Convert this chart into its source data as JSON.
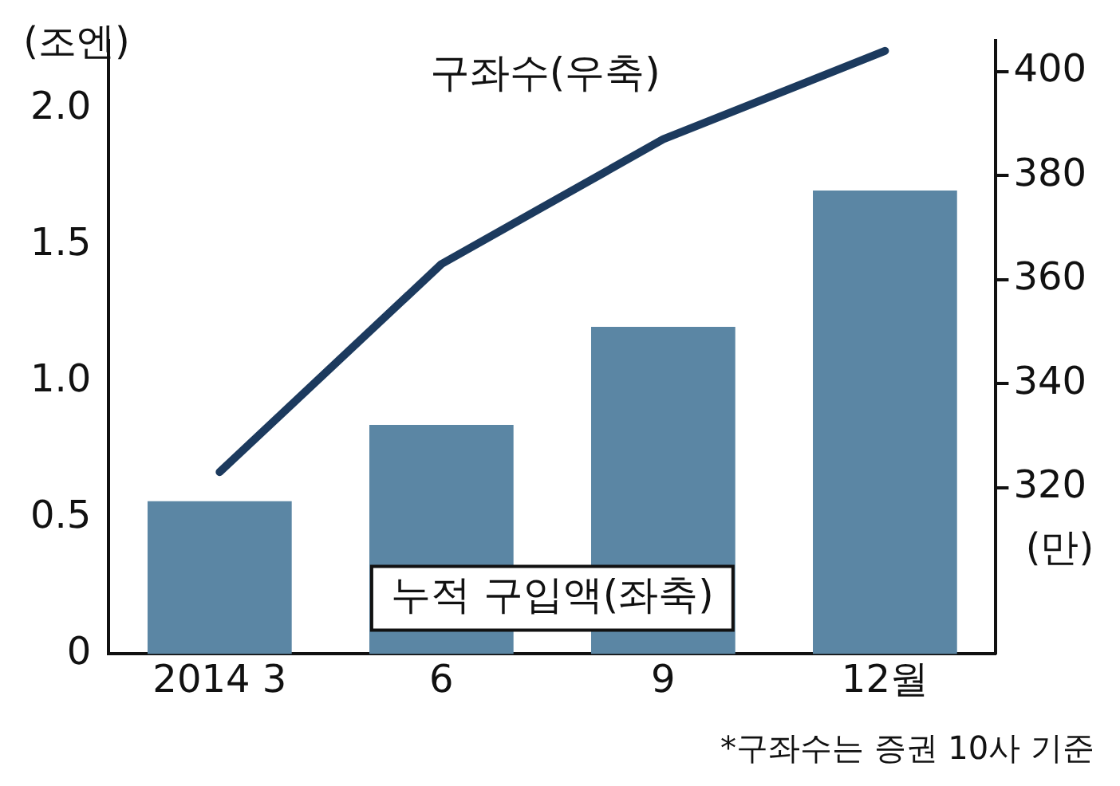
{
  "chart_data": {
    "type": "bar",
    "ylabel": "(조엔)",
    "y2label": "(만)",
    "categories": [
      "2014 3",
      "6",
      "9",
      "12월"
    ],
    "series": [
      {
        "name": "누적 구입액(좌축)",
        "color": "#5b86a4",
        "values": [
          0.56,
          0.84,
          1.2,
          1.7
        ]
      },
      {
        "name": "구좌수(우축)",
        "type": "line",
        "axis": "y2",
        "color": "#1c3a5e",
        "values": [
          323,
          363,
          387,
          404
        ]
      }
    ],
    "ylim": [
      0,
      2.25
    ],
    "yticks": [
      0,
      0.5,
      {
        "value": 1,
        "label": "1.0"
      },
      1.5,
      {
        "value": 2,
        "label": "2.0"
      }
    ],
    "y2lim": [
      288,
      406
    ],
    "y2ticks": [
      320,
      340,
      360,
      380,
      400
    ],
    "annotations": [
      "*구좌수는 증권 10사 기준"
    ],
    "grid": false,
    "legend": false,
    "marker": "none"
  }
}
